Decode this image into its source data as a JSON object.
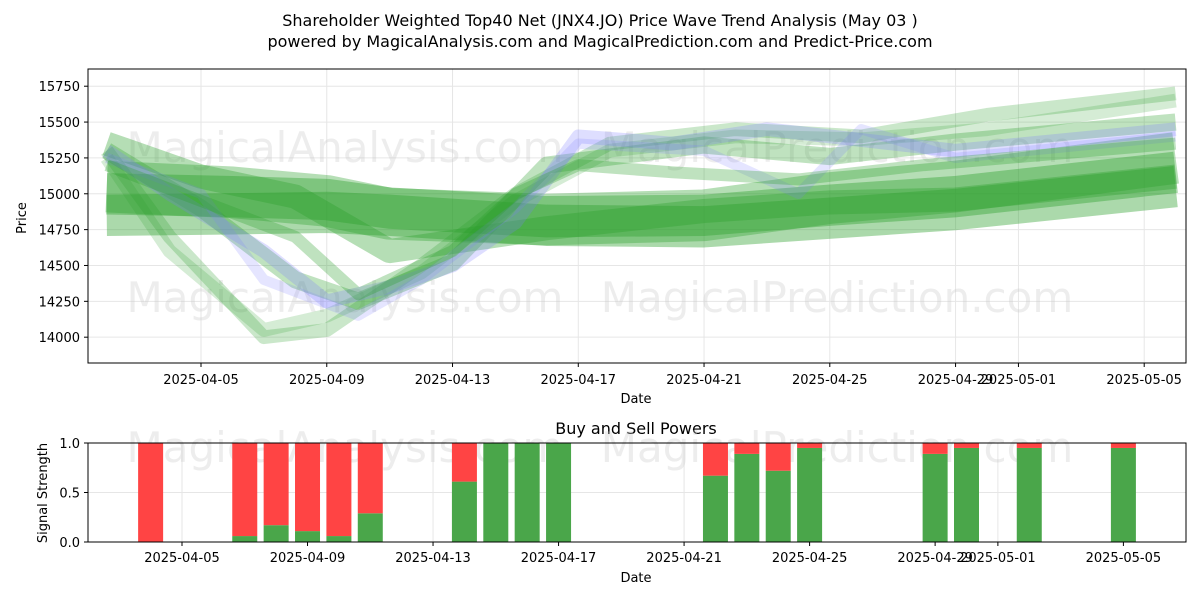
{
  "header": {
    "title_line1": "Shareholder Weighted Top40 Net  (JNX4.JO) Price Wave Trend Analysis (May 03 )",
    "title_line2": "powered by MagicalAnalysis.com and MagicalPrediction.com and Predict-Price.com"
  },
  "watermarks": [
    "MagicalAnalysis.com",
    "MagicalPrediction.com"
  ],
  "colors": {
    "green_band": "#2ca02c",
    "blue_band": "#7b7bff",
    "buy": "#4aa64a",
    "sell": "#ff4444"
  },
  "chart_data": [
    {
      "type": "area",
      "title": "",
      "xlabel": "Date",
      "ylabel": "Price",
      "x_ticks": [
        "2025-04-05",
        "2025-04-09",
        "2025-04-13",
        "2025-04-17",
        "2025-04-21",
        "2025-04-25",
        "2025-04-29",
        "2025-05-01",
        "2025-05-05"
      ],
      "y_ticks": [
        14000,
        14250,
        14500,
        14750,
        15000,
        15250,
        15500,
        15750
      ],
      "xlim": [
        "2025-04-01",
        "2025-05-06"
      ],
      "ylim": [
        13820,
        15870
      ],
      "grid": true,
      "series": [
        {
          "color": "green",
          "opacity": 0.4,
          "width": 120,
          "x": [
            "2025-04-02",
            "2025-04-06",
            "2025-04-09",
            "2025-04-11",
            "2025-04-16",
            "2025-04-21",
            "2025-04-25",
            "2025-04-29",
            "2025-05-06"
          ],
          "y": [
            14850,
            14860,
            14870,
            14850,
            14780,
            14770,
            14830,
            14890,
            15050
          ]
        },
        {
          "color": "green",
          "opacity": 0.4,
          "width": 120,
          "x": [
            "2025-04-02",
            "2025-04-06",
            "2025-04-09",
            "2025-04-11",
            "2025-04-16",
            "2025-04-21",
            "2025-04-25",
            "2025-04-29",
            "2025-05-06"
          ],
          "y": [
            15000,
            14980,
            14960,
            14900,
            14840,
            14850,
            14920,
            14980,
            15150
          ]
        },
        {
          "color": "green",
          "opacity": 0.35,
          "width": 150,
          "x": [
            "2025-04-02",
            "2025-04-06",
            "2025-04-09",
            "2025-04-11",
            "2025-04-16",
            "2025-04-21",
            "2025-04-25",
            "2025-04-29",
            "2025-05-06"
          ],
          "y": [
            15050,
            15010,
            14950,
            14860,
            14820,
            14850,
            14970,
            15050,
            15250
          ]
        },
        {
          "color": "green",
          "opacity": 0.35,
          "width": 70,
          "x": [
            "2025-04-02",
            "2025-04-05",
            "2025-04-08",
            "2025-04-11",
            "2025-04-16",
            "2025-04-21",
            "2025-04-25",
            "2025-04-29",
            "2025-05-06"
          ],
          "y": [
            15350,
            15120,
            14980,
            14600,
            14760,
            14880,
            14940,
            14960,
            15120
          ]
        },
        {
          "color": "green",
          "opacity": 0.3,
          "width": 50,
          "x": [
            "2025-04-02",
            "2025-04-05",
            "2025-04-08",
            "2025-04-10",
            "2025-04-13",
            "2025-04-16",
            "2025-04-21",
            "2025-04-25",
            "2025-04-29",
            "2025-05-06"
          ],
          "y": [
            15300,
            14900,
            14400,
            14250,
            14520,
            15200,
            15340,
            15260,
            15360,
            15500
          ]
        },
        {
          "color": "green",
          "opacity": 0.25,
          "width": 40,
          "x": [
            "2025-04-02",
            "2025-04-04",
            "2025-04-07",
            "2025-04-09",
            "2025-04-12",
            "2025-04-15",
            "2025-04-18",
            "2025-04-22",
            "2025-04-26",
            "2025-04-30",
            "2025-05-06"
          ],
          "y": [
            15300,
            14700,
            14000,
            14050,
            14500,
            15000,
            15350,
            15450,
            15400,
            15550,
            15700
          ]
        },
        {
          "color": "green",
          "opacity": 0.2,
          "width": 40,
          "x": [
            "2025-04-02",
            "2025-04-04",
            "2025-04-07",
            "2025-04-09",
            "2025-04-12",
            "2025-04-15",
            "2025-04-18",
            "2025-04-22",
            "2025-04-26",
            "2025-04-30",
            "2025-05-06"
          ],
          "y": [
            15250,
            14600,
            14050,
            14150,
            14450,
            14950,
            15300,
            15400,
            15380,
            15450,
            15650
          ]
        },
        {
          "color": "blue",
          "opacity": 0.25,
          "width": 40,
          "x": [
            "2025-04-02",
            "2025-04-04",
            "2025-04-07",
            "2025-04-09",
            "2025-04-11",
            "2025-04-13",
            "2025-04-15",
            "2025-04-17",
            "2025-04-20",
            "2025-04-23",
            "2025-04-25",
            "2025-04-29",
            "2025-05-06"
          ],
          "y": [
            15300,
            15000,
            14600,
            14250,
            14350,
            14500,
            14800,
            15400,
            15350,
            15450,
            15400,
            15300,
            15450
          ]
        },
        {
          "color": "blue",
          "opacity": 0.2,
          "width": 30,
          "x": [
            "2025-04-02",
            "2025-04-05",
            "2025-04-07",
            "2025-04-10",
            "2025-04-12",
            "2025-04-15",
            "2025-04-17",
            "2025-04-21",
            "2025-04-24",
            "2025-04-26",
            "2025-04-29",
            "2025-05-06"
          ],
          "y": [
            15250,
            15000,
            14400,
            14150,
            14400,
            14900,
            15350,
            15300,
            15000,
            15450,
            15250,
            15400
          ]
        },
        {
          "color": "green",
          "opacity": 0.3,
          "width": 35,
          "x": [
            "2025-04-02",
            "2025-04-05",
            "2025-04-08",
            "2025-04-10",
            "2025-04-13",
            "2025-04-15",
            "2025-04-17",
            "2025-04-20",
            "2025-04-24",
            "2025-04-28",
            "2025-05-06"
          ],
          "y": [
            15200,
            14950,
            14700,
            14300,
            14600,
            15000,
            15200,
            15150,
            15100,
            15200,
            15350
          ]
        }
      ]
    },
    {
      "type": "bar",
      "title": "Buy and Sell Powers",
      "xlabel": "Date",
      "ylabel": "Signal Strength",
      "x_ticks": [
        "2025-04-05",
        "2025-04-09",
        "2025-04-13",
        "2025-04-17",
        "2025-04-21",
        "2025-04-25",
        "2025-04-29",
        "2025-05-01",
        "2025-05-05"
      ],
      "y_ticks": [
        "0.0",
        "0.5",
        "1.0"
      ],
      "ylim": [
        0,
        1
      ],
      "categories": [
        "2025-04-04",
        "2025-04-07",
        "2025-04-08",
        "2025-04-09",
        "2025-04-10",
        "2025-04-11",
        "2025-04-14",
        "2025-04-15",
        "2025-04-16",
        "2025-04-17",
        "2025-04-22",
        "2025-04-23",
        "2025-04-24",
        "2025-04-25",
        "2025-04-29",
        "2025-04-30",
        "2025-05-02",
        "2025-05-05"
      ],
      "series": [
        {
          "name": "buy",
          "values": [
            0.0,
            0.06,
            0.17,
            0.11,
            0.06,
            0.29,
            0.61,
            1.0,
            1.0,
            1.0,
            0.67,
            0.89,
            0.72,
            0.95,
            0.89,
            0.95,
            0.95,
            0.95
          ]
        },
        {
          "name": "sell",
          "values": [
            1.0,
            0.94,
            0.83,
            0.89,
            0.94,
            0.71,
            0.39,
            0.0,
            0.0,
            0.0,
            0.33,
            0.11,
            0.28,
            0.05,
            0.11,
            0.05,
            0.05,
            0.05
          ]
        }
      ]
    }
  ]
}
